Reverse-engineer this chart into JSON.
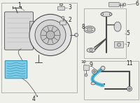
{
  "bg_color": "#f0f0eb",
  "line_color": "#4a4a4a",
  "highlight_color": "#5ab8d4",
  "highlight_fill": "#7dcce8",
  "box_line_color": "#999999",
  "label_color": "#222222",
  "leader_color": "#666666",
  "part_fill": "#d8d8d8",
  "part_fill2": "#c8c8c8",
  "white": "#ffffff",
  "shadow": "#b0b0b0"
}
